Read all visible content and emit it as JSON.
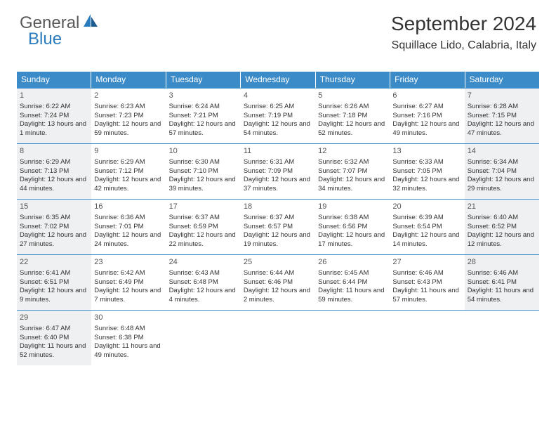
{
  "logo": {
    "part1": "General",
    "part2": "Blue"
  },
  "header": {
    "month_title": "September 2024",
    "location": "Squillace Lido, Calabria, Italy"
  },
  "colors": {
    "header_bg": "#3b8bc9",
    "shaded_bg": "#eef0f1",
    "border": "#3b8bc9"
  },
  "day_headers": [
    "Sunday",
    "Monday",
    "Tuesday",
    "Wednesday",
    "Thursday",
    "Friday",
    "Saturday"
  ],
  "weeks": [
    [
      {
        "num": "1",
        "shaded": true,
        "sunrise": "Sunrise: 6:22 AM",
        "sunset": "Sunset: 7:24 PM",
        "daylight": "Daylight: 13 hours and 1 minute."
      },
      {
        "num": "2",
        "shaded": false,
        "sunrise": "Sunrise: 6:23 AM",
        "sunset": "Sunset: 7:23 PM",
        "daylight": "Daylight: 12 hours and 59 minutes."
      },
      {
        "num": "3",
        "shaded": false,
        "sunrise": "Sunrise: 6:24 AM",
        "sunset": "Sunset: 7:21 PM",
        "daylight": "Daylight: 12 hours and 57 minutes."
      },
      {
        "num": "4",
        "shaded": false,
        "sunrise": "Sunrise: 6:25 AM",
        "sunset": "Sunset: 7:19 PM",
        "daylight": "Daylight: 12 hours and 54 minutes."
      },
      {
        "num": "5",
        "shaded": false,
        "sunrise": "Sunrise: 6:26 AM",
        "sunset": "Sunset: 7:18 PM",
        "daylight": "Daylight: 12 hours and 52 minutes."
      },
      {
        "num": "6",
        "shaded": false,
        "sunrise": "Sunrise: 6:27 AM",
        "sunset": "Sunset: 7:16 PM",
        "daylight": "Daylight: 12 hours and 49 minutes."
      },
      {
        "num": "7",
        "shaded": true,
        "sunrise": "Sunrise: 6:28 AM",
        "sunset": "Sunset: 7:15 PM",
        "daylight": "Daylight: 12 hours and 47 minutes."
      }
    ],
    [
      {
        "num": "8",
        "shaded": true,
        "sunrise": "Sunrise: 6:29 AM",
        "sunset": "Sunset: 7:13 PM",
        "daylight": "Daylight: 12 hours and 44 minutes."
      },
      {
        "num": "9",
        "shaded": false,
        "sunrise": "Sunrise: 6:29 AM",
        "sunset": "Sunset: 7:12 PM",
        "daylight": "Daylight: 12 hours and 42 minutes."
      },
      {
        "num": "10",
        "shaded": false,
        "sunrise": "Sunrise: 6:30 AM",
        "sunset": "Sunset: 7:10 PM",
        "daylight": "Daylight: 12 hours and 39 minutes."
      },
      {
        "num": "11",
        "shaded": false,
        "sunrise": "Sunrise: 6:31 AM",
        "sunset": "Sunset: 7:09 PM",
        "daylight": "Daylight: 12 hours and 37 minutes."
      },
      {
        "num": "12",
        "shaded": false,
        "sunrise": "Sunrise: 6:32 AM",
        "sunset": "Sunset: 7:07 PM",
        "daylight": "Daylight: 12 hours and 34 minutes."
      },
      {
        "num": "13",
        "shaded": false,
        "sunrise": "Sunrise: 6:33 AM",
        "sunset": "Sunset: 7:05 PM",
        "daylight": "Daylight: 12 hours and 32 minutes."
      },
      {
        "num": "14",
        "shaded": true,
        "sunrise": "Sunrise: 6:34 AM",
        "sunset": "Sunset: 7:04 PM",
        "daylight": "Daylight: 12 hours and 29 minutes."
      }
    ],
    [
      {
        "num": "15",
        "shaded": true,
        "sunrise": "Sunrise: 6:35 AM",
        "sunset": "Sunset: 7:02 PM",
        "daylight": "Daylight: 12 hours and 27 minutes."
      },
      {
        "num": "16",
        "shaded": false,
        "sunrise": "Sunrise: 6:36 AM",
        "sunset": "Sunset: 7:01 PM",
        "daylight": "Daylight: 12 hours and 24 minutes."
      },
      {
        "num": "17",
        "shaded": false,
        "sunrise": "Sunrise: 6:37 AM",
        "sunset": "Sunset: 6:59 PM",
        "daylight": "Daylight: 12 hours and 22 minutes."
      },
      {
        "num": "18",
        "shaded": false,
        "sunrise": "Sunrise: 6:37 AM",
        "sunset": "Sunset: 6:57 PM",
        "daylight": "Daylight: 12 hours and 19 minutes."
      },
      {
        "num": "19",
        "shaded": false,
        "sunrise": "Sunrise: 6:38 AM",
        "sunset": "Sunset: 6:56 PM",
        "daylight": "Daylight: 12 hours and 17 minutes."
      },
      {
        "num": "20",
        "shaded": false,
        "sunrise": "Sunrise: 6:39 AM",
        "sunset": "Sunset: 6:54 PM",
        "daylight": "Daylight: 12 hours and 14 minutes."
      },
      {
        "num": "21",
        "shaded": true,
        "sunrise": "Sunrise: 6:40 AM",
        "sunset": "Sunset: 6:52 PM",
        "daylight": "Daylight: 12 hours and 12 minutes."
      }
    ],
    [
      {
        "num": "22",
        "shaded": true,
        "sunrise": "Sunrise: 6:41 AM",
        "sunset": "Sunset: 6:51 PM",
        "daylight": "Daylight: 12 hours and 9 minutes."
      },
      {
        "num": "23",
        "shaded": false,
        "sunrise": "Sunrise: 6:42 AM",
        "sunset": "Sunset: 6:49 PM",
        "daylight": "Daylight: 12 hours and 7 minutes."
      },
      {
        "num": "24",
        "shaded": false,
        "sunrise": "Sunrise: 6:43 AM",
        "sunset": "Sunset: 6:48 PM",
        "daylight": "Daylight: 12 hours and 4 minutes."
      },
      {
        "num": "25",
        "shaded": false,
        "sunrise": "Sunrise: 6:44 AM",
        "sunset": "Sunset: 6:46 PM",
        "daylight": "Daylight: 12 hours and 2 minutes."
      },
      {
        "num": "26",
        "shaded": false,
        "sunrise": "Sunrise: 6:45 AM",
        "sunset": "Sunset: 6:44 PM",
        "daylight": "Daylight: 11 hours and 59 minutes."
      },
      {
        "num": "27",
        "shaded": false,
        "sunrise": "Sunrise: 6:46 AM",
        "sunset": "Sunset: 6:43 PM",
        "daylight": "Daylight: 11 hours and 57 minutes."
      },
      {
        "num": "28",
        "shaded": true,
        "sunrise": "Sunrise: 6:46 AM",
        "sunset": "Sunset: 6:41 PM",
        "daylight": "Daylight: 11 hours and 54 minutes."
      }
    ],
    [
      {
        "num": "29",
        "shaded": true,
        "sunrise": "Sunrise: 6:47 AM",
        "sunset": "Sunset: 6:40 PM",
        "daylight": "Daylight: 11 hours and 52 minutes."
      },
      {
        "num": "30",
        "shaded": false,
        "sunrise": "Sunrise: 6:48 AM",
        "sunset": "Sunset: 6:38 PM",
        "daylight": "Daylight: 11 hours and 49 minutes."
      },
      {
        "num": "",
        "shaded": false,
        "sunrise": "",
        "sunset": "",
        "daylight": ""
      },
      {
        "num": "",
        "shaded": false,
        "sunrise": "",
        "sunset": "",
        "daylight": ""
      },
      {
        "num": "",
        "shaded": false,
        "sunrise": "",
        "sunset": "",
        "daylight": ""
      },
      {
        "num": "",
        "shaded": false,
        "sunrise": "",
        "sunset": "",
        "daylight": ""
      },
      {
        "num": "",
        "shaded": false,
        "sunrise": "",
        "sunset": "",
        "daylight": ""
      }
    ]
  ]
}
